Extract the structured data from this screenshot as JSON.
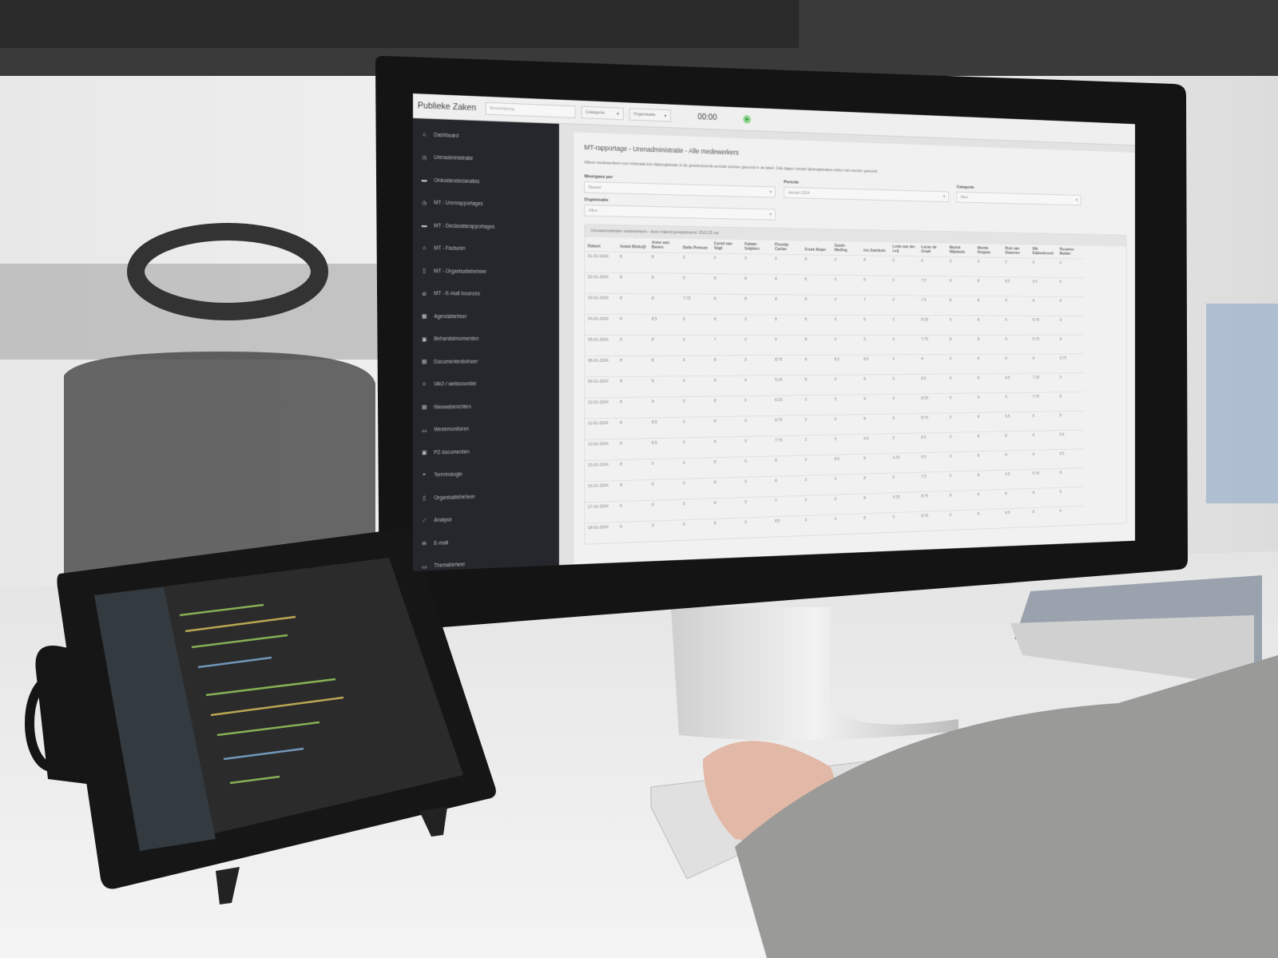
{
  "app": {
    "brand": "Publieke Zaken",
    "search_placeholder": "Beschrijving",
    "category_select": "Categorie",
    "organisation_select": "Organisatie",
    "timer": "00:00",
    "play_icon": "play-icon",
    "accent_color": "#8fd68f"
  },
  "sidebar": {
    "items": [
      {
        "label": "Dashboard",
        "icon": "home-icon",
        "glyph": "⌂"
      },
      {
        "label": "Urenadministratie",
        "icon": "clock-icon",
        "glyph": "◷"
      },
      {
        "label": "Onkostendeclaraties",
        "icon": "credit-card-icon",
        "glyph": "▬"
      },
      {
        "label": "MT - Urenrapportages",
        "icon": "clock-icon",
        "glyph": "◷"
      },
      {
        "label": "MT - Declaratierapportages",
        "icon": "credit-card-icon",
        "glyph": "▬"
      },
      {
        "label": "MT - Facturen",
        "icon": "bank-icon",
        "glyph": "⌂"
      },
      {
        "label": "MT - Organisatiebeheer",
        "icon": "building-icon",
        "glyph": "▯"
      },
      {
        "label": "MT - E-mail bounces",
        "icon": "ban-icon",
        "glyph": "⊘"
      },
      {
        "label": "Agendabeheer",
        "icon": "calendar-icon",
        "glyph": "▦"
      },
      {
        "label": "Behandelmomenten",
        "icon": "briefcase-icon",
        "glyph": "▣"
      },
      {
        "label": "Documentenbeheer",
        "icon": "file-icon",
        "glyph": "▤"
      },
      {
        "label": "VAO / wetsvoorstel",
        "icon": "sitemap-icon",
        "glyph": "⌗"
      },
      {
        "label": "Nieuwsberichten",
        "icon": "newspaper-icon",
        "glyph": "▤"
      },
      {
        "label": "Weekmonitoren",
        "icon": "monitor-icon",
        "glyph": "▭"
      },
      {
        "label": "PZ documenten",
        "icon": "id-card-icon",
        "glyph": "▣"
      },
      {
        "label": "Terminologie",
        "icon": "quote-icon",
        "glyph": "❞"
      },
      {
        "label": "Organisatiebeheer",
        "icon": "building-icon",
        "glyph": "▯"
      },
      {
        "label": "Analyse",
        "icon": "chart-line-icon",
        "glyph": "⟋"
      },
      {
        "label": "E-mail",
        "icon": "envelope-icon",
        "glyph": "✉"
      },
      {
        "label": "Themabeheer",
        "icon": "folder-icon",
        "glyph": "▭"
      }
    ]
  },
  "main": {
    "title": "MT-rapportage - Urenadministratie - Alle medewerkers",
    "note": "Alleen medewerkers met minimaal één tijdsregistratie in de geselecteerde periode worden getoond in de tabel. Ook dagen zonder tijdsregistraties zullen niet worden getoond.",
    "filters": {
      "weergave_label": "Weergave per",
      "weergave_value": "Maand",
      "periode_label": "Periode",
      "periode_value": "Januari 2024",
      "categorie_label": "Categorie",
      "categorie_value": "Alles",
      "organisatie_label": "Organisatie",
      "organisatie_value": "Alles"
    },
    "table_caption": "Urenadministratie medewerkers - deze maand geregistreerd: 1522.25 uur",
    "columns": [
      "Datum",
      "Aniek Blokzijl",
      "Anne van Beven",
      "Belle Prinsen",
      "Cyriel van Vugt",
      "Fabian Snijders",
      "Floortje Carlier",
      "Freek Beijer",
      "Guido Welling",
      "Iris Swinkels",
      "Lotte van der Leij",
      "Lucas de Graaf",
      "Marick Wijnands",
      "Meinte Kingma",
      "Rick van Staveren",
      "Rik Edelenbosch",
      "Rosanne Mulder"
    ],
    "rows": [
      [
        "01-01-2024",
        "8",
        "8",
        "0",
        "0",
        "0",
        "0",
        "8",
        "0",
        "8",
        "0",
        "0",
        "0",
        "0",
        "0",
        "0",
        "0"
      ],
      [
        "02-01-2024",
        "8",
        "8",
        "0",
        "8",
        "8",
        "8",
        "8",
        "0",
        "8",
        "0",
        "7.5",
        "0",
        "8",
        "8.5",
        "6.5",
        "8"
      ],
      [
        "03-01-2024",
        "8",
        "8",
        "7.75",
        "8",
        "8",
        "8",
        "8",
        "0",
        "7",
        "0",
        "7.5",
        "8",
        "8",
        "9",
        "8",
        "8"
      ],
      [
        "04-01-2024",
        "8",
        "8.5",
        "0",
        "8",
        "0",
        "8",
        "8",
        "0",
        "6",
        "0",
        "8.25",
        "0",
        "8",
        "9",
        "6.75",
        "9"
      ],
      [
        "05-01-2024",
        "0",
        "8",
        "0",
        "7",
        "0",
        "0",
        "8",
        "0",
        "5",
        "0",
        "7.75",
        "8",
        "8",
        "9",
        "5.75",
        "8"
      ],
      [
        "08-01-2024",
        "8",
        "8",
        "0",
        "8",
        "0",
        "8.75",
        "8",
        "8.5",
        "8.5",
        "0",
        "8",
        "0",
        "8",
        "8",
        "8",
        "9.75"
      ],
      [
        "09-01-2024",
        "8",
        "9",
        "0",
        "8",
        "0",
        "9.25",
        "8",
        "0",
        "8",
        "0",
        "8.5",
        "9",
        "8",
        "9.5",
        "7.25",
        "9"
      ],
      [
        "10-01-2024",
        "8",
        "9",
        "0",
        "8",
        "0",
        "8.25",
        "0",
        "0",
        "9",
        "0",
        "8.25",
        "0",
        "8",
        "9",
        "7.75",
        "8"
      ],
      [
        "11-01-2024",
        "8",
        "8.5",
        "0",
        "8",
        "0",
        "8.75",
        "0",
        "0",
        "8",
        "8",
        "8.75",
        "0",
        "8",
        "9.5",
        "6",
        "8"
      ],
      [
        "12-01-2024",
        "0",
        "8.5",
        "0",
        "9",
        "0",
        "7.75",
        "0",
        "0",
        "9.5",
        "0",
        "8.5",
        "0",
        "8",
        "8",
        "8",
        "8.5"
      ],
      [
        "15-01-2024",
        "8",
        "0",
        "0",
        "8",
        "0",
        "9",
        "0",
        "8.5",
        "8",
        "4.25",
        "8.5",
        "0",
        "8",
        "8",
        "8",
        "8.5"
      ],
      [
        "16-01-2024",
        "8",
        "0",
        "0",
        "8",
        "0",
        "8",
        "0",
        "0",
        "8",
        "5",
        "7.5",
        "0",
        "8",
        "9.5",
        "5.75",
        "8"
      ],
      [
        "17-01-2024",
        "0",
        "0",
        "0",
        "8",
        "0",
        "7",
        "0",
        "0",
        "8",
        "4.25",
        "8.75",
        "8",
        "8",
        "8",
        "8",
        "8"
      ],
      [
        "18-01-2024",
        "0",
        "0",
        "0",
        "8",
        "0",
        "8.5",
        "0",
        "0",
        "8",
        "9",
        "8.75",
        "0",
        "8",
        "8.5",
        "8",
        "8"
      ]
    ]
  }
}
